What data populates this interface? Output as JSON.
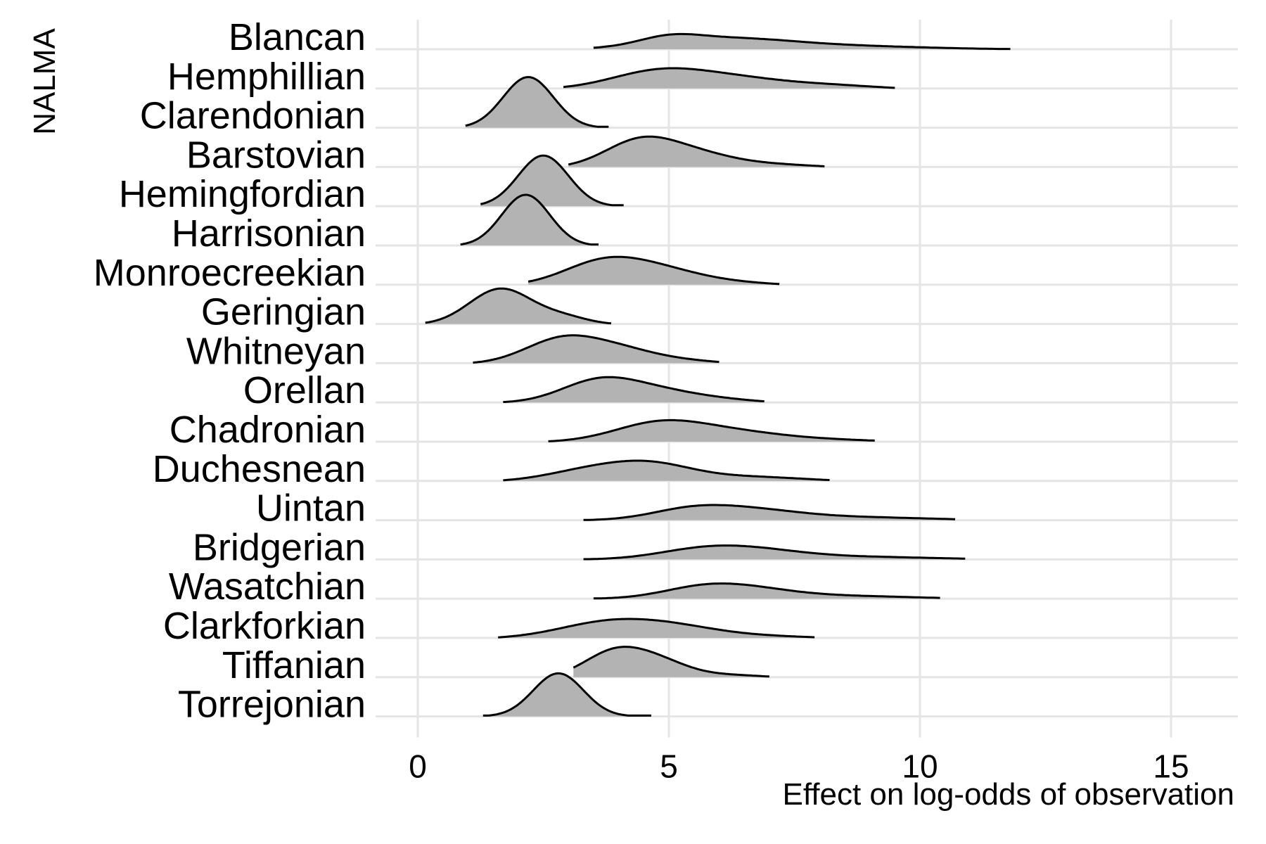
{
  "chart_data": {
    "type": "ridgeline",
    "xlabel": "Effect on log-odds of observation",
    "ylabel": "NALMA",
    "xlim": [
      -0.8,
      16.3
    ],
    "x_ticks": [
      0,
      5,
      10,
      15
    ],
    "grid": true,
    "fill_color": "#b3b3b3",
    "line_color": "#000000",
    "grid_color": "#e5e5e5",
    "categories": [
      "Blancan",
      "Hemphillian",
      "Clarendonian",
      "Barstovian",
      "Hemingfordian",
      "Harrisonian",
      "Monroecreekian",
      "Geringian",
      "Whitneyan",
      "Orellan",
      "Chadronian",
      "Duchesnean",
      "Uintan",
      "Bridgerian",
      "Wasatchian",
      "Clarkforkian",
      "Tiffanian",
      "Torrejonian"
    ],
    "series": [
      {
        "name": "Blancan",
        "min": 3.5,
        "max": 11.8,
        "peaks": [
          [
            5.0,
            0.7,
            0.6
          ],
          [
            6.1,
            1.0,
            1.3
          ],
          [
            8.6,
            0.3,
            1.6
          ]
        ],
        "peak_height": 0.6
      },
      {
        "name": "Hemphillian",
        "min": 2.9,
        "max": 9.5,
        "peaks": [
          [
            4.8,
            1.0,
            0.95
          ],
          [
            6.4,
            0.55,
            1.0
          ],
          [
            8.3,
            0.2,
            0.9
          ]
        ],
        "peak_height": 0.8
      },
      {
        "name": "Clarendonian",
        "min": 0.95,
        "max": 3.8,
        "peaks": [
          [
            2.2,
            1.0,
            0.5
          ]
        ],
        "peak_height": 2.0
      },
      {
        "name": "Barstovian",
        "min": 3.0,
        "max": 8.1,
        "peaks": [
          [
            4.4,
            1.0,
            0.7
          ],
          [
            5.5,
            0.55,
            0.8
          ],
          [
            7.2,
            0.12,
            0.8
          ]
        ],
        "peak_height": 1.2
      },
      {
        "name": "Hemingfordian",
        "min": 1.25,
        "max": 4.1,
        "peaks": [
          [
            2.5,
            1.0,
            0.5
          ]
        ],
        "peak_height": 2.0
      },
      {
        "name": "Harrisonian",
        "min": 0.85,
        "max": 3.6,
        "peaks": [
          [
            2.15,
            1.0,
            0.48
          ]
        ],
        "peak_height": 2.0
      },
      {
        "name": "Monroecreekian",
        "min": 2.2,
        "max": 7.2,
        "peaks": [
          [
            3.7,
            1.0,
            0.8
          ],
          [
            4.9,
            0.55,
            0.8
          ],
          [
            6.3,
            0.12,
            0.8
          ]
        ],
        "peak_height": 1.1
      },
      {
        "name": "Geringian",
        "min": 0.15,
        "max": 3.85,
        "peaks": [
          [
            1.65,
            1.0,
            0.62
          ],
          [
            2.9,
            0.2,
            0.5
          ]
        ],
        "peak_height": 1.4
      },
      {
        "name": "Whitneyan",
        "min": 1.1,
        "max": 6.0,
        "peaks": [
          [
            2.9,
            1.0,
            0.75
          ],
          [
            4.1,
            0.45,
            0.7
          ],
          [
            5.3,
            0.12,
            0.7
          ]
        ],
        "peak_height": 1.1
      },
      {
        "name": "Orellan",
        "min": 1.7,
        "max": 6.9,
        "peaks": [
          [
            3.6,
            1.0,
            0.75
          ],
          [
            4.8,
            0.5,
            0.8
          ],
          [
            6.1,
            0.12,
            0.7
          ]
        ],
        "peak_height": 1.0
      },
      {
        "name": "Chadronian",
        "min": 2.6,
        "max": 9.1,
        "peaks": [
          [
            4.8,
            1.0,
            0.9
          ],
          [
            6.3,
            0.5,
            1.0
          ],
          [
            8.2,
            0.12,
            1.0
          ]
        ],
        "peak_height": 0.85
      },
      {
        "name": "Duchesnean",
        "min": 1.7,
        "max": 8.2,
        "peaks": [
          [
            3.5,
            0.7,
            0.9
          ],
          [
            4.7,
            0.8,
            0.8
          ],
          [
            6.5,
            0.3,
            1.2
          ]
        ],
        "peak_height": 0.8
      },
      {
        "name": "Uintan",
        "min": 3.3,
        "max": 10.7,
        "peaks": [
          [
            5.4,
            0.75,
            0.8
          ],
          [
            6.6,
            0.8,
            1.0
          ],
          [
            8.8,
            0.25,
            1.4
          ]
        ],
        "peak_height": 0.6
      },
      {
        "name": "Bridgerian",
        "min": 3.3,
        "max": 10.9,
        "peaks": [
          [
            5.6,
            0.75,
            0.9
          ],
          [
            6.7,
            0.75,
            1.0
          ],
          [
            8.8,
            0.25,
            1.5
          ]
        ],
        "peak_height": 0.55
      },
      {
        "name": "Wasatchian",
        "min": 3.5,
        "max": 10.4,
        "peaks": [
          [
            5.6,
            0.8,
            0.8
          ],
          [
            6.6,
            0.75,
            0.9
          ],
          [
            8.5,
            0.25,
            1.3
          ]
        ],
        "peak_height": 0.6
      },
      {
        "name": "Clarkforkian",
        "min": 1.6,
        "max": 7.9,
        "peaks": [
          [
            3.8,
            1.0,
            1.0
          ],
          [
            5.2,
            0.55,
            0.9
          ],
          [
            6.9,
            0.15,
            1.0
          ]
        ],
        "peak_height": 0.75
      },
      {
        "name": "Tiffanian",
        "min": 3.1,
        "max": 7.0,
        "peaks": [
          [
            3.9,
            1.0,
            0.6
          ],
          [
            4.8,
            0.6,
            0.6
          ],
          [
            6.2,
            0.12,
            0.7
          ]
        ],
        "peak_height": 1.2
      },
      {
        "name": "Torrejonian",
        "min": 1.3,
        "max": 4.65,
        "peaks": [
          [
            2.8,
            1.0,
            0.5
          ]
        ],
        "peak_height": 1.7
      }
    ]
  }
}
